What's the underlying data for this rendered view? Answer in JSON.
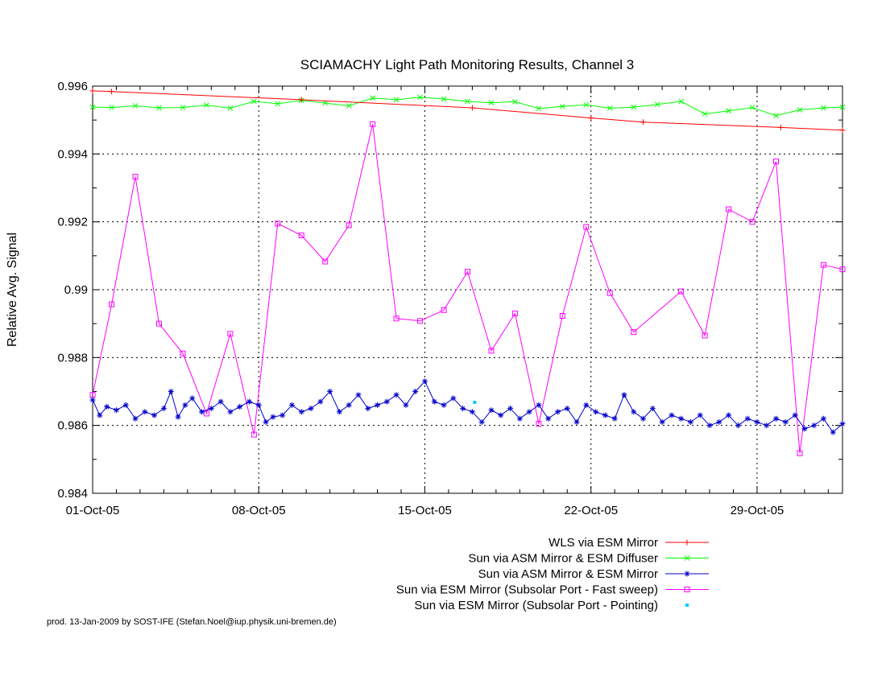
{
  "credit": "prod. 13-Jan-2009 by SOST-IFE (Stefan.Noel@iup.physik.uni-bremen.de)",
  "chart_data": {
    "type": "line",
    "title": "SCIAMACHY Light Path Monitoring Results, Channel 3",
    "xlabel": "",
    "ylabel": "Relative Avg. Signal",
    "x_unit": "day of October 2005",
    "xlim": [
      1,
      32.6
    ],
    "ylim": [
      0.984,
      0.996
    ],
    "y_ticks": [
      0.984,
      0.986,
      0.988,
      0.99,
      0.992,
      0.994,
      0.996
    ],
    "y_tick_labels": [
      "0.984",
      "0.986",
      "0.988",
      "0.99",
      "0.992",
      "0.994",
      "0.996"
    ],
    "x_ticks": [
      1,
      8,
      15,
      22,
      29
    ],
    "x_tick_labels": [
      "01-Oct-05",
      "08-Oct-05",
      "15-Oct-05",
      "22-Oct-05",
      "29-Oct-05"
    ],
    "grid": true,
    "legend_position": "below plot, right",
    "series": [
      {
        "name": "WLS via ESM Mirror",
        "color": "#ff0000",
        "marker": "plus",
        "x": [
          1.0,
          1.8,
          9.8,
          17.0,
          22.0,
          24.2,
          30.0,
          32.6
        ],
        "y": [
          0.99586,
          0.99584,
          0.9956,
          0.99536,
          0.99506,
          0.99494,
          0.99478,
          0.9947
        ]
      },
      {
        "name": "Sun via ASM Mirror & ESM Diffuser",
        "color": "#00ff00",
        "marker": "cross",
        "x": [
          1.0,
          1.8,
          2.8,
          3.8,
          4.8,
          5.8,
          6.8,
          7.8,
          8.8,
          9.8,
          10.8,
          11.8,
          12.8,
          13.8,
          14.8,
          15.8,
          16.8,
          17.8,
          18.8,
          19.8,
          20.8,
          21.8,
          22.8,
          23.8,
          24.8,
          25.8,
          26.8,
          27.8,
          28.8,
          29.8,
          30.8,
          31.8,
          32.6
        ],
        "y": [
          0.99538,
          0.99537,
          0.99542,
          0.99536,
          0.99537,
          0.99544,
          0.99535,
          0.99555,
          0.99548,
          0.99558,
          0.9955,
          0.99542,
          0.99565,
          0.9956,
          0.99567,
          0.99562,
          0.99555,
          0.99551,
          0.99554,
          0.99534,
          0.9954,
          0.99545,
          0.99535,
          0.99538,
          0.99546,
          0.99555,
          0.99518,
          0.99527,
          0.99537,
          0.99513,
          0.9953,
          0.99536,
          0.99538
        ]
      },
      {
        "name": "Sun via ASM Mirror & ESM Mirror",
        "color": "#0000cc",
        "marker": "star",
        "x": [
          1.0,
          1.3,
          1.6,
          2.0,
          2.4,
          2.8,
          3.2,
          3.6,
          4.0,
          4.3,
          4.6,
          4.9,
          5.2,
          5.6,
          6.0,
          6.4,
          6.8,
          7.2,
          7.6,
          8.0,
          8.3,
          8.6,
          9.0,
          9.4,
          9.8,
          10.2,
          10.6,
          11.0,
          11.4,
          11.8,
          12.2,
          12.6,
          13.0,
          13.4,
          13.8,
          14.2,
          14.6,
          15.0,
          15.4,
          15.8,
          16.2,
          16.6,
          17.0,
          17.4,
          17.8,
          18.2,
          18.6,
          19.0,
          19.4,
          19.8,
          20.2,
          20.6,
          21.0,
          21.4,
          21.8,
          22.2,
          22.6,
          23.0,
          23.4,
          23.8,
          24.2,
          24.6,
          25.0,
          25.4,
          25.8,
          26.2,
          26.6,
          27.0,
          27.4,
          27.8,
          28.2,
          28.6,
          29.0,
          29.4,
          29.8,
          30.2,
          30.6,
          31.0,
          31.4,
          31.8,
          32.2,
          32.6
        ],
        "y": [
          0.98675,
          0.9863,
          0.98655,
          0.98645,
          0.9866,
          0.9862,
          0.9864,
          0.9863,
          0.9865,
          0.987,
          0.98625,
          0.9866,
          0.9868,
          0.9864,
          0.9865,
          0.9867,
          0.9864,
          0.98655,
          0.9867,
          0.9866,
          0.9861,
          0.98625,
          0.9863,
          0.9866,
          0.9864,
          0.9865,
          0.9867,
          0.987,
          0.9864,
          0.9866,
          0.9869,
          0.9865,
          0.9866,
          0.9867,
          0.9869,
          0.9866,
          0.987,
          0.9873,
          0.9867,
          0.9866,
          0.9868,
          0.9865,
          0.9864,
          0.9861,
          0.98645,
          0.9863,
          0.9865,
          0.9862,
          0.9864,
          0.9866,
          0.9862,
          0.9864,
          0.9865,
          0.9861,
          0.9866,
          0.9864,
          0.9863,
          0.9862,
          0.9869,
          0.9864,
          0.9862,
          0.9865,
          0.9861,
          0.9863,
          0.9862,
          0.9861,
          0.9863,
          0.986,
          0.9861,
          0.9863,
          0.986,
          0.9862,
          0.9861,
          0.986,
          0.9862,
          0.9861,
          0.9863,
          0.9859,
          0.986,
          0.9862,
          0.9858,
          0.98605
        ]
      },
      {
        "name": "Sun via ESM Mirror (Subsolar Port - Fast sweep)",
        "color": "#ff00ff",
        "marker": "square",
        "x": [
          1.0,
          1.8,
          2.8,
          3.8,
          4.8,
          5.8,
          6.8,
          7.8,
          8.8,
          9.8,
          10.8,
          11.8,
          12.8,
          13.8,
          14.8,
          15.8,
          16.8,
          17.8,
          18.8,
          19.8,
          20.8,
          21.8,
          22.8,
          23.8,
          25.8,
          26.8,
          27.8,
          28.8,
          29.8,
          30.8,
          31.8,
          32.6
        ],
        "y": [
          0.9869,
          0.98957,
          0.99333,
          0.989,
          0.98812,
          0.98635,
          0.9887,
          0.98573,
          0.99195,
          0.9916,
          0.99083,
          0.9919,
          0.99488,
          0.98915,
          0.98908,
          0.9894,
          0.99053,
          0.9882,
          0.9893,
          0.98605,
          0.98923,
          0.99185,
          0.9899,
          0.98875,
          0.98995,
          0.98865,
          0.99237,
          0.992,
          0.99378,
          0.98518,
          0.99073,
          0.9906
        ]
      },
      {
        "name": "Sun via ESM Mirror (Subsolar Port - Pointing)",
        "color": "#00ccff",
        "marker": "dot",
        "x": [
          17.1
        ],
        "y": [
          0.98668
        ]
      }
    ]
  }
}
